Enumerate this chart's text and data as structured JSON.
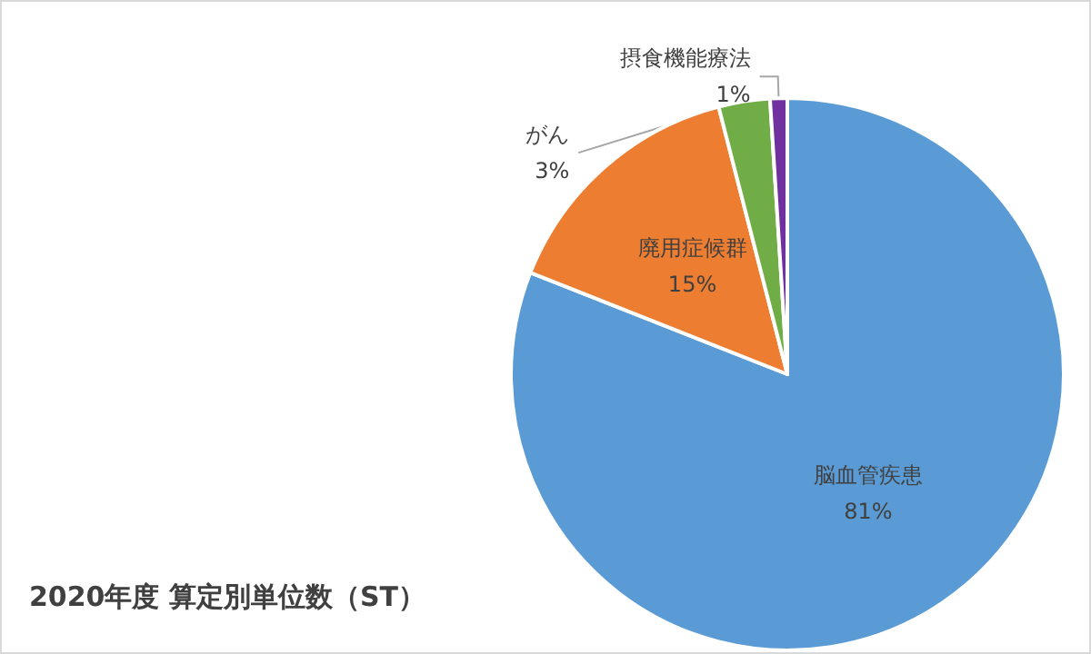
{
  "chart_data": {
    "type": "pie",
    "title": "2020年度 算定別単位数（ST）",
    "categories": [
      "脳血管疾患",
      "廃用症候群",
      "がん",
      "摂食機能療法"
    ],
    "values": [
      81,
      15,
      3,
      1
    ],
    "value_labels": [
      "81%",
      "15%",
      "3%",
      "1%"
    ],
    "colors": [
      "#5b9bd5",
      "#ed7d31",
      "#70ad47",
      "#7030a0"
    ],
    "legend": false
  }
}
